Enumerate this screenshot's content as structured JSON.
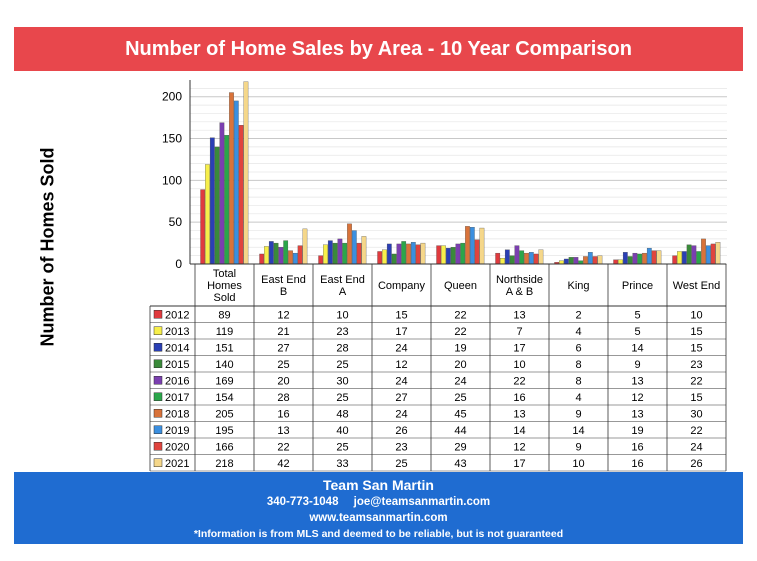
{
  "header": {
    "title": "Number of Home Sales by Area - 10 Year Comparison"
  },
  "chart_data": {
    "type": "bar",
    "title": "Number of Home Sales by Area - 10 Year Comparison",
    "ylabel": "Number of Homes Sold",
    "xlabel": "",
    "ylim": [
      0,
      220
    ],
    "yticks": [
      0,
      50,
      100,
      150,
      200
    ],
    "grid": true,
    "legend": "table-left",
    "categories": [
      "Total Homes Sold",
      "East End B",
      "East End A",
      "Company",
      "Queen",
      "Northside A & B",
      "King",
      "Prince",
      "West End"
    ],
    "series": [
      {
        "name": "2012",
        "color": "#e03a3e",
        "values": [
          89,
          12,
          10,
          15,
          22,
          13,
          2,
          5,
          10
        ]
      },
      {
        "name": "2013",
        "color": "#f7ef4a",
        "values": [
          119,
          21,
          23,
          17,
          22,
          7,
          4,
          5,
          15
        ]
      },
      {
        "name": "2014",
        "color": "#2a3fb5",
        "values": [
          151,
          27,
          28,
          24,
          19,
          17,
          6,
          14,
          15
        ]
      },
      {
        "name": "2015",
        "color": "#3a8a3a",
        "values": [
          140,
          25,
          25,
          12,
          20,
          10,
          8,
          9,
          23
        ]
      },
      {
        "name": "2016",
        "color": "#7b3fb0",
        "values": [
          169,
          20,
          30,
          24,
          24,
          22,
          8,
          13,
          22
        ]
      },
      {
        "name": "2017",
        "color": "#2aa64a",
        "values": [
          154,
          28,
          25,
          27,
          25,
          16,
          4,
          12,
          15
        ]
      },
      {
        "name": "2018",
        "color": "#d9733a",
        "values": [
          205,
          16,
          48,
          24,
          45,
          13,
          9,
          13,
          30
        ]
      },
      {
        "name": "2019",
        "color": "#3b8fe0",
        "values": [
          195,
          13,
          40,
          26,
          44,
          14,
          14,
          19,
          22
        ]
      },
      {
        "name": "2020",
        "color": "#e0443e",
        "values": [
          166,
          22,
          25,
          23,
          29,
          12,
          9,
          16,
          24
        ]
      },
      {
        "name": "2021",
        "color": "#f5d78a",
        "values": [
          218,
          42,
          33,
          25,
          43,
          17,
          10,
          16,
          26
        ]
      }
    ]
  },
  "footer": {
    "company": "Team San Martin",
    "phone": "340-773-1048",
    "email": "joe@teamsanmartin.com",
    "website": "www.teamsanmartin.com",
    "disclaimer": "*Information is from MLS and deemed to be reliable, but is not guaranteed"
  }
}
